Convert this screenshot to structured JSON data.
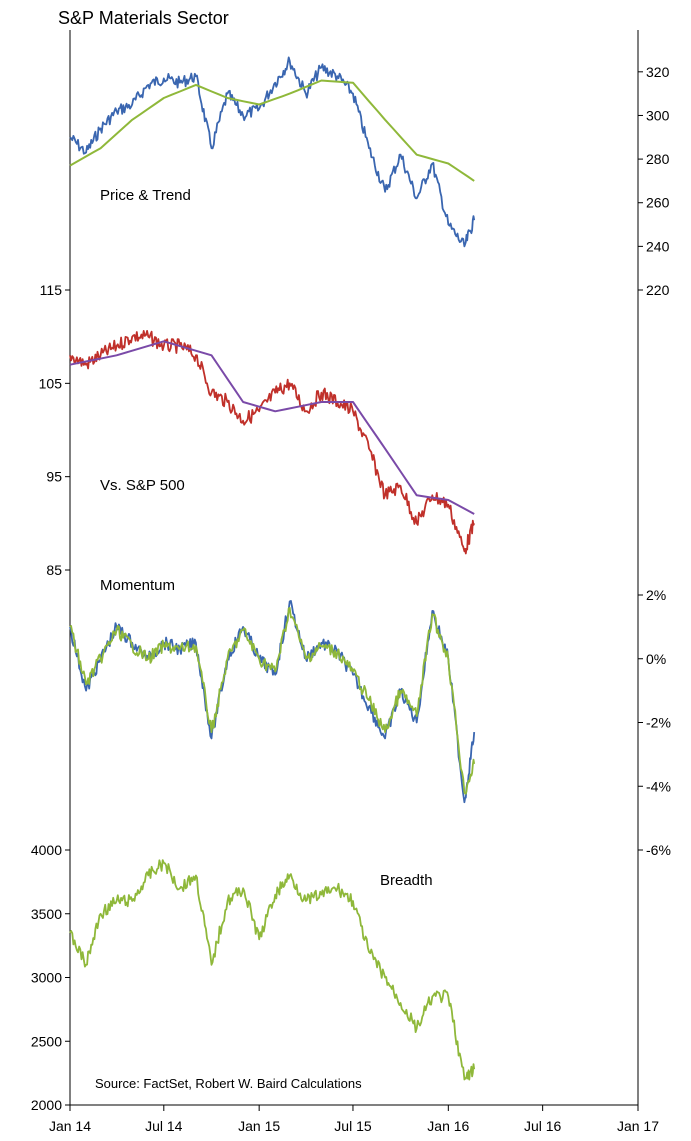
{
  "chart_data": {
    "type": "line",
    "title": "S&P Materials Sector",
    "source": "Source: FactSet, Robert W. Baird Calculations",
    "colors": {
      "blue": "#3a66b0",
      "green": "#8fb83a",
      "red": "#c0302a",
      "purple": "#7a4aa8"
    },
    "x_axis": {
      "ticks": [
        "Jan 14",
        "Jul 14",
        "Jan 15",
        "Jul 15",
        "Jan 16",
        "Jul 16",
        "Jan 17"
      ],
      "range": [
        "2014-01",
        "2017-01"
      ]
    },
    "panels": [
      {
        "label": "Price & Trend",
        "axis_side": "right",
        "ylim": [
          220,
          330
        ],
        "yticks": [
          "220",
          "240",
          "260",
          "280",
          "300",
          "320"
        ],
        "series": [
          {
            "color": "blue",
            "points": [
              [
                "2014-01-01",
                290
              ],
              [
                "2014-02-01",
                283
              ],
              [
                "2014-03-01",
                294
              ],
              [
                "2014-04-01",
                302
              ],
              [
                "2014-05-01",
                305
              ],
              [
                "2014-06-01",
                314
              ],
              [
                "2014-07-01",
                317
              ],
              [
                "2014-08-01",
                315
              ],
              [
                "2014-09-01",
                318
              ],
              [
                "2014-10-01",
                285
              ],
              [
                "2014-11-01",
                310
              ],
              [
                "2014-12-01",
                300
              ],
              [
                "2015-01-01",
                303
              ],
              [
                "2015-02-01",
                315
              ],
              [
                "2015-03-01",
                325
              ],
              [
                "2015-04-01",
                310
              ],
              [
                "2015-05-01",
                322
              ],
              [
                "2015-06-01",
                318
              ],
              [
                "2015-07-01",
                310
              ],
              [
                "2015-08-01",
                285
              ],
              [
                "2015-09-01",
                265
              ],
              [
                "2015-10-01",
                282
              ],
              [
                "2015-11-01",
                262
              ],
              [
                "2015-12-01",
                278
              ],
              [
                "2016-01-01",
                250
              ],
              [
                "2016-02-01",
                240
              ],
              [
                "2016-02-20",
                252
              ]
            ]
          },
          {
            "color": "green",
            "points": [
              [
                "2014-01-01",
                277
              ],
              [
                "2014-03-01",
                285
              ],
              [
                "2014-05-01",
                298
              ],
              [
                "2014-07-01",
                308
              ],
              [
                "2014-09-01",
                314
              ],
              [
                "2014-11-01",
                308
              ],
              [
                "2015-01-01",
                305
              ],
              [
                "2015-03-01",
                310
              ],
              [
                "2015-05-01",
                316
              ],
              [
                "2015-07-01",
                315
              ],
              [
                "2015-09-01",
                298
              ],
              [
                "2015-11-01",
                282
              ],
              [
                "2016-01-01",
                278
              ],
              [
                "2016-02-20",
                270
              ]
            ]
          }
        ]
      },
      {
        "label": "Vs. S&P 500",
        "axis_side": "left",
        "ylim": [
          85,
          115
        ],
        "yticks": [
          "85",
          "95",
          "105",
          "115"
        ],
        "series": [
          {
            "color": "red",
            "points": [
              [
                "2014-01-01",
                108
              ],
              [
                "2014-02-01",
                107
              ],
              [
                "2014-03-01",
                108
              ],
              [
                "2014-04-01",
                109
              ],
              [
                "2014-05-01",
                110
              ],
              [
                "2014-06-01",
                110
              ],
              [
                "2014-07-01",
                109
              ],
              [
                "2014-08-01",
                109
              ],
              [
                "2014-09-01",
                108
              ],
              [
                "2014-10-01",
                104
              ],
              [
                "2014-11-01",
                103
              ],
              [
                "2014-12-01",
                101
              ],
              [
                "2015-01-01",
                102
              ],
              [
                "2015-02-01",
                104
              ],
              [
                "2015-03-01",
                105
              ],
              [
                "2015-04-01",
                102
              ],
              [
                "2015-05-01",
                104
              ],
              [
                "2015-06-01",
                103
              ],
              [
                "2015-07-01",
                102
              ],
              [
                "2015-08-01",
                98
              ],
              [
                "2015-09-01",
                93
              ],
              [
                "2015-10-01",
                94
              ],
              [
                "2015-11-01",
                90
              ],
              [
                "2015-12-01",
                93
              ],
              [
                "2016-01-01",
                92
              ],
              [
                "2016-02-01",
                87
              ],
              [
                "2016-02-20",
                90
              ]
            ]
          },
          {
            "color": "purple",
            "points": [
              [
                "2014-01-01",
                107
              ],
              [
                "2014-04-01",
                108
              ],
              [
                "2014-07-01",
                109.5
              ],
              [
                "2014-10-01",
                108
              ],
              [
                "2014-12-01",
                103
              ],
              [
                "2015-02-01",
                102
              ],
              [
                "2015-05-01",
                103
              ],
              [
                "2015-07-01",
                103
              ],
              [
                "2015-09-01",
                98
              ],
              [
                "2015-11-01",
                93
              ],
              [
                "2016-01-01",
                92.5
              ],
              [
                "2016-02-20",
                91
              ]
            ]
          }
        ]
      },
      {
        "label": "Momentum",
        "axis_side": "right",
        "ylim": [
          -6,
          2
        ],
        "yticks": [
          "-6%",
          "-4%",
          "-2%",
          "0%",
          "2%"
        ],
        "series": [
          {
            "color": "blue",
            "points": [
              [
                "2014-01-01",
                1
              ],
              [
                "2014-02-01",
                -1
              ],
              [
                "2014-03-01",
                0
              ],
              [
                "2014-04-01",
                1
              ],
              [
                "2014-05-01",
                0.5
              ],
              [
                "2014-06-01",
                0
              ],
              [
                "2014-07-01",
                0.5
              ],
              [
                "2014-08-01",
                0.3
              ],
              [
                "2014-09-01",
                0.5
              ],
              [
                "2014-10-01",
                -2.5
              ],
              [
                "2014-11-01",
                0
              ],
              [
                "2014-12-01",
                1
              ],
              [
                "2015-01-01",
                0
              ],
              [
                "2015-02-01",
                -0.5
              ],
              [
                "2015-03-01",
                1.8
              ],
              [
                "2015-04-01",
                0
              ],
              [
                "2015-05-01",
                0.5
              ],
              [
                "2015-06-01",
                0.2
              ],
              [
                "2015-07-01",
                -0.5
              ],
              [
                "2015-08-01",
                -1.5
              ],
              [
                "2015-09-01",
                -2.5
              ],
              [
                "2015-10-01",
                -1
              ],
              [
                "2015-11-01",
                -2
              ],
              [
                "2015-12-01",
                1.5
              ],
              [
                "2016-01-01",
                0
              ],
              [
                "2016-02-01",
                -4.5
              ],
              [
                "2016-02-20",
                -2.3
              ]
            ]
          },
          {
            "color": "green",
            "points": [
              [
                "2014-01-01",
                1
              ],
              [
                "2014-02-01",
                -0.8
              ],
              [
                "2014-03-01",
                0
              ],
              [
                "2014-04-01",
                0.9
              ],
              [
                "2014-05-01",
                0.4
              ],
              [
                "2014-06-01",
                0
              ],
              [
                "2014-07-01",
                0.4
              ],
              [
                "2014-08-01",
                0.3
              ],
              [
                "2014-09-01",
                0.4
              ],
              [
                "2014-10-01",
                -2.3
              ],
              [
                "2014-11-01",
                0
              ],
              [
                "2014-12-01",
                0.9
              ],
              [
                "2015-01-01",
                0
              ],
              [
                "2015-02-01",
                -0.4
              ],
              [
                "2015-03-01",
                1.6
              ],
              [
                "2015-04-01",
                0
              ],
              [
                "2015-05-01",
                0.4
              ],
              [
                "2015-06-01",
                0.2
              ],
              [
                "2015-07-01",
                -0.4
              ],
              [
                "2015-08-01",
                -1.3
              ],
              [
                "2015-09-01",
                -2.3
              ],
              [
                "2015-10-01",
                -1
              ],
              [
                "2015-11-01",
                -1.8
              ],
              [
                "2015-12-01",
                1.4
              ],
              [
                "2016-01-01",
                0
              ],
              [
                "2016-02-01",
                -4.2
              ],
              [
                "2016-02-20",
                -3.3
              ]
            ]
          }
        ]
      },
      {
        "label": "Breadth",
        "axis_side": "left",
        "ylim": [
          2000,
          4000
        ],
        "yticks": [
          "2000",
          "2500",
          "3000",
          "3500",
          "4000"
        ],
        "series": [
          {
            "color": "green",
            "points": [
              [
                "2014-01-01",
                3350
              ],
              [
                "2014-02-01",
                3100
              ],
              [
                "2014-03-01",
                3500
              ],
              [
                "2014-04-01",
                3600
              ],
              [
                "2014-05-01",
                3600
              ],
              [
                "2014-06-01",
                3800
              ],
              [
                "2014-07-01",
                3900
              ],
              [
                "2014-08-01",
                3700
              ],
              [
                "2014-09-01",
                3800
              ],
              [
                "2014-10-01",
                3100
              ],
              [
                "2014-11-01",
                3600
              ],
              [
                "2014-12-01",
                3700
              ],
              [
                "2015-01-01",
                3300
              ],
              [
                "2015-02-01",
                3650
              ],
              [
                "2015-03-01",
                3800
              ],
              [
                "2015-04-01",
                3600
              ],
              [
                "2015-05-01",
                3650
              ],
              [
                "2015-06-01",
                3700
              ],
              [
                "2015-07-01",
                3600
              ],
              [
                "2015-08-01",
                3200
              ],
              [
                "2015-09-01",
                3000
              ],
              [
                "2015-10-01",
                2800
              ],
              [
                "2015-11-01",
                2600
              ],
              [
                "2015-12-01",
                2850
              ],
              [
                "2016-01-01",
                2850
              ],
              [
                "2016-02-01",
                2200
              ],
              [
                "2016-02-20",
                2280
              ]
            ]
          }
        ]
      }
    ]
  }
}
